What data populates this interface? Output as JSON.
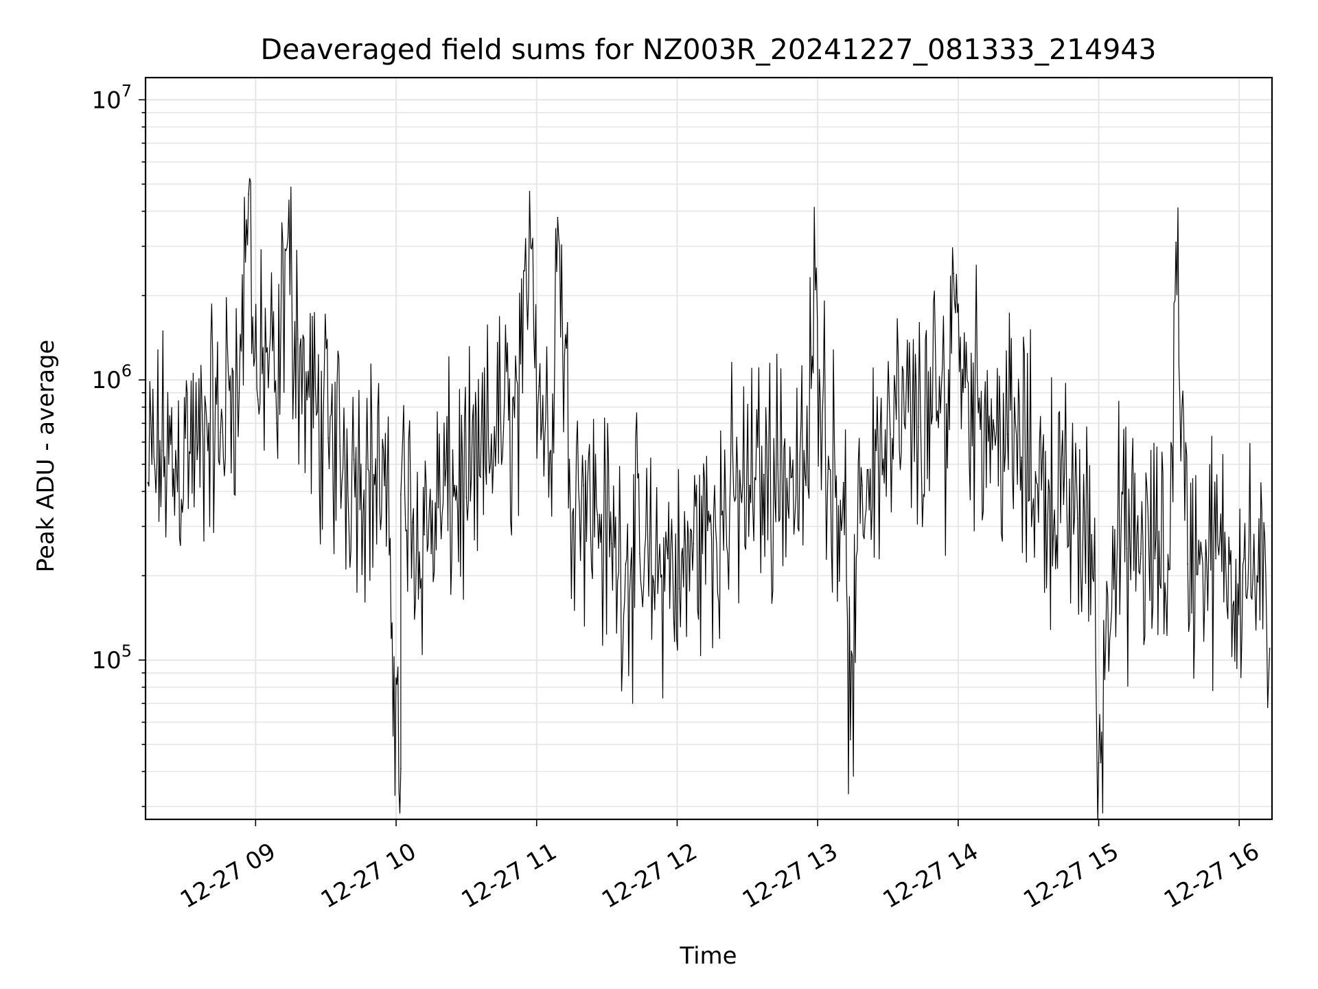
{
  "chart_data": {
    "type": "line",
    "title": "Deaveraged field sums for NZ003R_20241227_081333_214943",
    "xlabel": "Time",
    "ylabel": "Peak ADU - average",
    "yscale": "log",
    "ylim": [
      27000,
      12000000
    ],
    "y_ticks": [
      {
        "value": 100000,
        "base": "10",
        "exp": "5"
      },
      {
        "value": 1000000,
        "base": "10",
        "exp": "6"
      },
      {
        "value": 10000000,
        "base": "10",
        "exp": "7"
      }
    ],
    "xlim": [
      "2024-12-27 08:13",
      "2024-12-27 16:14"
    ],
    "x_ticks": [
      {
        "value": "2024-12-27 09:00",
        "label": "12-27 09"
      },
      {
        "value": "2024-12-27 10:00",
        "label": "12-27 10"
      },
      {
        "value": "2024-12-27 11:00",
        "label": "12-27 11"
      },
      {
        "value": "2024-12-27 12:00",
        "label": "12-27 12"
      },
      {
        "value": "2024-12-27 13:00",
        "label": "12-27 13"
      },
      {
        "value": "2024-12-27 14:00",
        "label": "12-27 14"
      },
      {
        "value": "2024-12-27 15:00",
        "label": "12-27 15"
      },
      {
        "value": "2024-12-27 16:00",
        "label": "12-27 16"
      }
    ],
    "grid": true,
    "line_color": "#000000",
    "grid_color": "#e6e6e6",
    "series": [
      {
        "x": [
          "2024-12-27 08:14",
          "2024-12-27 08:20",
          "2024-12-27 08:25",
          "2024-12-27 08:30",
          "2024-12-27 08:35",
          "2024-12-27 08:40",
          "2024-12-27 08:45",
          "2024-12-27 08:50",
          "2024-12-27 08:53",
          "2024-12-27 08:57",
          "2024-12-27 09:01",
          "2024-12-27 09:05",
          "2024-12-27 09:09",
          "2024-12-27 09:13",
          "2024-12-27 09:18",
          "2024-12-27 09:22",
          "2024-12-27 09:26",
          "2024-12-27 09:31",
          "2024-12-27 09:36",
          "2024-12-27 09:42",
          "2024-12-27 09:48",
          "2024-12-27 09:55",
          "2024-12-27 10:02",
          "2024-12-27 10:02",
          "2024-12-27 10:07",
          "2024-12-27 10:12",
          "2024-12-27 10:18",
          "2024-12-27 10:25",
          "2024-12-27 10:30",
          "2024-12-27 10:36",
          "2024-12-27 10:42",
          "2024-12-27 10:48",
          "2024-12-27 10:54",
          "2024-12-27 10:57",
          "2024-12-27 11:01",
          "2024-12-27 11:06",
          "2024-12-27 11:09",
          "2024-12-27 11:14",
          "2024-12-27 11:20",
          "2024-12-27 11:26",
          "2024-12-27 11:32",
          "2024-12-27 11:38",
          "2024-12-27 11:44",
          "2024-12-27 11:50",
          "2024-12-27 11:56",
          "2024-12-27 12:01",
          "2024-12-27 12:07",
          "2024-12-27 12:13",
          "2024-12-27 12:19",
          "2024-12-27 12:25",
          "2024-12-27 12:31",
          "2024-12-27 12:37",
          "2024-12-27 12:43",
          "2024-12-27 12:49",
          "2024-12-27 12:55",
          "2024-12-27 12:59",
          "2024-12-27 13:05",
          "2024-12-27 13:11",
          "2024-12-27 13:14",
          "2024-12-27 13:19",
          "2024-12-27 13:25",
          "2024-12-27 13:31",
          "2024-12-27 13:37",
          "2024-12-27 13:43",
          "2024-12-27 13:49",
          "2024-12-27 13:55",
          "2024-12-27 13:58",
          "2024-12-27 14:03",
          "2024-12-27 14:09",
          "2024-12-27 14:15",
          "2024-12-27 14:21",
          "2024-12-27 14:27",
          "2024-12-27 14:33",
          "2024-12-27 14:39",
          "2024-12-27 14:45",
          "2024-12-27 14:51",
          "2024-12-27 14:57",
          "2024-12-27 15:00",
          "2024-12-27 15:06",
          "2024-12-27 15:12",
          "2024-12-27 15:18",
          "2024-12-27 15:24",
          "2024-12-27 15:30",
          "2024-12-27 15:33",
          "2024-12-27 15:38",
          "2024-12-27 15:44",
          "2024-12-27 15:50",
          "2024-12-27 15:56",
          "2024-12-27 16:02",
          "2024-12-27 16:08",
          "2024-12-27 16:13"
        ],
        "values": [
          430000,
          560000,
          480000,
          620000,
          520000,
          700000,
          650000,
          1100000,
          900000,
          4600000,
          850000,
          1300000,
          700000,
          2900000,
          1400000,
          850000,
          750000,
          620000,
          580000,
          520000,
          480000,
          420000,
          41000,
          390000,
          310000,
          280000,
          350000,
          420000,
          380000,
          450000,
          680000,
          720000,
          900000,
          4700000,
          950000,
          560000,
          3800000,
          520000,
          420000,
          330000,
          260000,
          220000,
          240000,
          190000,
          230000,
          180000,
          260000,
          290000,
          330000,
          380000,
          420000,
          460000,
          500000,
          450000,
          420000,
          2100000,
          480000,
          430000,
          52000,
          420000,
          560000,
          640000,
          700000,
          680000,
          740000,
          820000,
          2400000,
          940000,
          860000,
          720000,
          640000,
          530000,
          470000,
          400000,
          360000,
          320000,
          280000,
          43000,
          300000,
          250000,
          240000,
          230000,
          210000,
          3100000,
          220000,
          240000,
          230000,
          220000,
          230000,
          190000,
          110000
        ]
      }
    ]
  }
}
